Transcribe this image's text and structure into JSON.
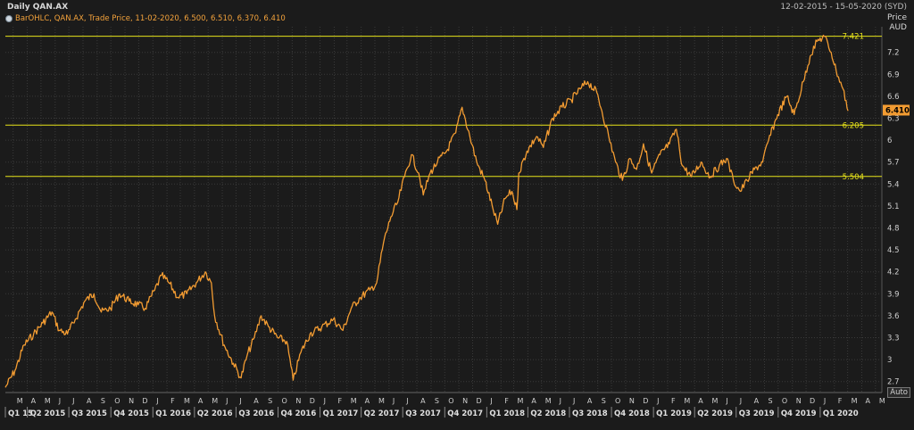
{
  "header": {
    "title": "Daily QAN.AX",
    "date_range": "12-02-2015 - 15-05-2020 (SYD)",
    "legend": "BarOHLC, QAN.AX, Trade Price, 11-02-2020, 6.500, 6.510, 6.370, 6.410",
    "price_label": "Price",
    "currency_label": "AUD",
    "auto_button": "Auto"
  },
  "colors": {
    "series": "#f39c32",
    "hline": "#e7e31b",
    "grid": "#3a3a3a",
    "last_price_bg": "#f39c32"
  },
  "chart_data": {
    "type": "line",
    "title": "Daily QAN.AX",
    "ylabel": "Price AUD",
    "ylim": [
      2.55,
      7.55
    ],
    "yticks": [
      2.7,
      3,
      3.3,
      3.6,
      3.9,
      4.2,
      4.5,
      4.8,
      5.1,
      5.4,
      5.7,
      6,
      6.3,
      6.6,
      6.9,
      7.2
    ],
    "last_price": 6.41,
    "hlines": [
      7.421,
      6.205,
      5.504
    ],
    "month_ticks": [
      "M",
      "A",
      "M",
      "J",
      "J",
      "A",
      "S",
      "O",
      "N",
      "D",
      "J",
      "F",
      "M",
      "A",
      "M",
      "J",
      "J",
      "A",
      "S",
      "O",
      "N",
      "D",
      "J",
      "F",
      "M",
      "A",
      "M",
      "J",
      "J",
      "A",
      "S",
      "O",
      "N",
      "D",
      "J",
      "F",
      "M",
      "A",
      "M",
      "J",
      "J",
      "A",
      "S",
      "O",
      "N",
      "D",
      "J",
      "F",
      "M",
      "A",
      "M",
      "J",
      "J",
      "A",
      "S",
      "O",
      "N",
      "D",
      "J",
      "F",
      "M",
      "A",
      "M"
    ],
    "quarter_labels": [
      "Q1 15",
      "Q2 2015",
      "Q3 2015",
      "Q4 2015",
      "Q1 2016",
      "Q2 2016",
      "Q3 2016",
      "Q4 2016",
      "Q1 2017",
      "Q2 2017",
      "Q3 2017",
      "Q4 2017",
      "Q1 2018",
      "Q2 2018",
      "Q3 2018",
      "Q4 2018",
      "Q1 2019",
      "Q2 2019",
      "Q3 2019",
      "Q4 2019",
      "Q1 2020"
    ],
    "series": [
      {
        "points": [
          [
            "2015-02-12",
            2.62
          ],
          [
            "2015-03-05",
            2.85
          ],
          [
            "2015-03-25",
            3.2
          ],
          [
            "2015-04-15",
            3.35
          ],
          [
            "2015-05-05",
            3.5
          ],
          [
            "2015-05-25",
            3.65
          ],
          [
            "2015-06-10",
            3.4
          ],
          [
            "2015-06-28",
            3.35
          ],
          [
            "2015-07-15",
            3.55
          ],
          [
            "2015-08-05",
            3.8
          ],
          [
            "2015-08-25",
            3.9
          ],
          [
            "2015-09-10",
            3.65
          ],
          [
            "2015-09-30",
            3.7
          ],
          [
            "2015-10-20",
            3.9
          ],
          [
            "2015-11-10",
            3.8
          ],
          [
            "2015-11-30",
            3.75
          ],
          [
            "2015-12-15",
            3.7
          ],
          [
            "2016-01-05",
            3.95
          ],
          [
            "2016-01-20",
            4.15
          ],
          [
            "2016-02-05",
            4.05
          ],
          [
            "2016-02-25",
            3.85
          ],
          [
            "2016-03-15",
            3.9
          ],
          [
            "2016-04-05",
            4.05
          ],
          [
            "2016-04-25",
            4.2
          ],
          [
            "2016-05-08",
            4.05
          ],
          [
            "2016-05-15",
            3.6
          ],
          [
            "2016-06-05",
            3.2
          ],
          [
            "2016-06-25",
            2.95
          ],
          [
            "2016-07-12",
            2.75
          ],
          [
            "2016-07-25",
            3.05
          ],
          [
            "2016-08-10",
            3.3
          ],
          [
            "2016-08-25",
            3.6
          ],
          [
            "2016-09-10",
            3.45
          ],
          [
            "2016-09-30",
            3.3
          ],
          [
            "2016-10-20",
            3.25
          ],
          [
            "2016-11-03",
            2.72
          ],
          [
            "2016-11-20",
            3.1
          ],
          [
            "2016-12-10",
            3.35
          ],
          [
            "2017-01-05",
            3.45
          ],
          [
            "2017-01-30",
            3.55
          ],
          [
            "2017-02-20",
            3.4
          ],
          [
            "2017-03-10",
            3.7
          ],
          [
            "2017-03-30",
            3.85
          ],
          [
            "2017-04-20",
            3.95
          ],
          [
            "2017-05-05",
            4.05
          ],
          [
            "2017-05-20",
            4.6
          ],
          [
            "2017-06-05",
            4.95
          ],
          [
            "2017-06-20",
            5.15
          ],
          [
            "2017-07-05",
            5.5
          ],
          [
            "2017-07-20",
            5.8
          ],
          [
            "2017-08-05",
            5.55
          ],
          [
            "2017-08-15",
            5.25
          ],
          [
            "2017-08-30",
            5.55
          ],
          [
            "2017-09-15",
            5.7
          ],
          [
            "2017-10-05",
            5.85
          ],
          [
            "2017-10-25",
            6.1
          ],
          [
            "2017-11-08",
            6.45
          ],
          [
            "2017-11-25",
            6.05
          ],
          [
            "2017-12-10",
            5.7
          ],
          [
            "2017-12-28",
            5.45
          ],
          [
            "2018-01-15",
            5.05
          ],
          [
            "2018-01-25",
            4.85
          ],
          [
            "2018-02-10",
            5.2
          ],
          [
            "2018-02-25",
            5.3
          ],
          [
            "2018-03-08",
            5.05
          ],
          [
            "2018-03-12",
            5.55
          ],
          [
            "2018-03-30",
            5.85
          ],
          [
            "2018-04-20",
            6.05
          ],
          [
            "2018-05-05",
            5.9
          ],
          [
            "2018-05-25",
            6.3
          ],
          [
            "2018-06-15",
            6.45
          ],
          [
            "2018-07-05",
            6.55
          ],
          [
            "2018-07-25",
            6.7
          ],
          [
            "2018-08-10",
            6.8
          ],
          [
            "2018-08-30",
            6.65
          ],
          [
            "2018-09-10",
            6.4
          ],
          [
            "2018-09-25",
            6.05
          ],
          [
            "2018-10-10",
            5.7
          ],
          [
            "2018-10-25",
            5.45
          ],
          [
            "2018-11-10",
            5.75
          ],
          [
            "2018-11-25",
            5.6
          ],
          [
            "2018-12-10",
            5.95
          ],
          [
            "2018-12-28",
            5.55
          ],
          [
            "2019-01-15",
            5.8
          ],
          [
            "2019-02-05",
            5.95
          ],
          [
            "2019-02-20",
            6.15
          ],
          [
            "2019-03-05",
            5.65
          ],
          [
            "2019-03-25",
            5.5
          ],
          [
            "2019-04-15",
            5.7
          ],
          [
            "2019-05-05",
            5.5
          ],
          [
            "2019-05-25",
            5.65
          ],
          [
            "2019-06-10",
            5.75
          ],
          [
            "2019-06-25",
            5.45
          ],
          [
            "2019-07-10",
            5.3
          ],
          [
            "2019-07-25",
            5.45
          ],
          [
            "2019-08-10",
            5.6
          ],
          [
            "2019-08-28",
            5.7
          ],
          [
            "2019-09-10",
            6.0
          ],
          [
            "2019-09-30",
            6.35
          ],
          [
            "2019-10-20",
            6.6
          ],
          [
            "2019-11-05",
            6.35
          ],
          [
            "2019-11-25",
            6.8
          ],
          [
            "2019-12-10",
            7.15
          ],
          [
            "2019-12-25",
            7.35
          ],
          [
            "2020-01-10",
            7.42
          ],
          [
            "2020-01-25",
            7.2
          ],
          [
            "2020-02-05",
            6.95
          ],
          [
            "2020-02-20",
            6.7
          ],
          [
            "2020-03-02",
            6.4
          ]
        ]
      }
    ]
  }
}
